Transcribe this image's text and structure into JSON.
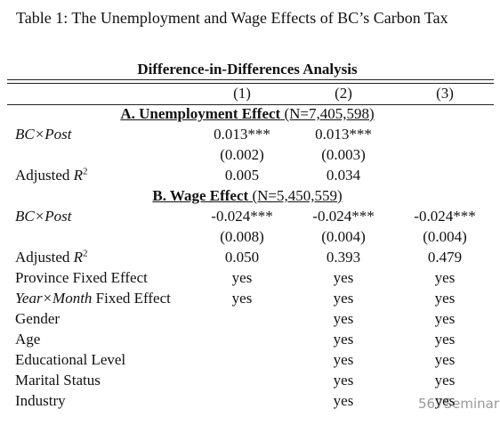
{
  "title": "Table 1: The Unemployment and Wage Effects of BC’s Carbon Tax",
  "table": {
    "caption": "Difference-in-Differences Analysis",
    "columns": [
      "(1)",
      "(2)",
      "(3)"
    ],
    "panels": [
      {
        "header": [
          {
            "text": "A. Unemployment Effect",
            "style": "bold"
          },
          {
            "text": " (N=7,405,598)",
            "style": "normal"
          }
        ],
        "rows": [
          {
            "label": [
              {
                "text": "BC×Post",
                "style": "italic"
              }
            ],
            "cells": [
              "0.013***",
              "0.013***",
              null
            ]
          },
          {
            "label": null,
            "cells": [
              "(0.002)",
              "(0.003)",
              null
            ]
          },
          {
            "label": [
              {
                "text": "Adjusted ",
                "style": "normal"
              },
              {
                "text": "R",
                "style": "italic"
              },
              {
                "text": "2",
                "style": "sup"
              }
            ],
            "cells": [
              "0.005",
              "0.034",
              null
            ]
          }
        ]
      },
      {
        "header": [
          {
            "text": "B. Wage Effect",
            "style": "bold"
          },
          {
            "text": " (N=5,450,559)",
            "style": "normal"
          }
        ],
        "rows": [
          {
            "label": [
              {
                "text": "BC×Post",
                "style": "italic"
              }
            ],
            "cells": [
              "-0.024***",
              "-0.024***",
              "-0.024***"
            ]
          },
          {
            "label": null,
            "cells": [
              "(0.008)",
              "(0.004)",
              "(0.004)"
            ]
          },
          {
            "label": [
              {
                "text": "Adjusted ",
                "style": "normal"
              },
              {
                "text": "R",
                "style": "italic"
              },
              {
                "text": "2",
                "style": "sup"
              }
            ],
            "cells": [
              "0.050",
              "0.393",
              "0.479"
            ]
          },
          {
            "label": [
              {
                "text": "Province Fixed Effect",
                "style": "normal"
              }
            ],
            "cells": [
              "yes",
              "yes",
              "yes"
            ]
          },
          {
            "label": [
              {
                "text": "Year×Month",
                "style": "italic"
              },
              {
                "text": " Fixed Effect",
                "style": "normal"
              }
            ],
            "cells": [
              "yes",
              "yes",
              "yes"
            ]
          },
          {
            "label": [
              {
                "text": "Gender",
                "style": "normal"
              }
            ],
            "cells": [
              null,
              "yes",
              "yes"
            ]
          },
          {
            "label": [
              {
                "text": "Age",
                "style": "normal"
              }
            ],
            "cells": [
              null,
              "yes",
              "yes"
            ]
          },
          {
            "label": [
              {
                "text": "Educational Level",
                "style": "normal"
              }
            ],
            "cells": [
              null,
              "yes",
              "yes"
            ]
          },
          {
            "label": [
              {
                "text": "Marital Status",
                "style": "normal"
              }
            ],
            "cells": [
              null,
              "yes",
              "yes"
            ]
          },
          {
            "label": [
              {
                "text": "Industry",
                "style": "normal"
              }
            ],
            "cells": [
              null,
              "yes",
              "yes"
            ]
          }
        ]
      }
    ]
  },
  "watermark": "567Seminar"
}
